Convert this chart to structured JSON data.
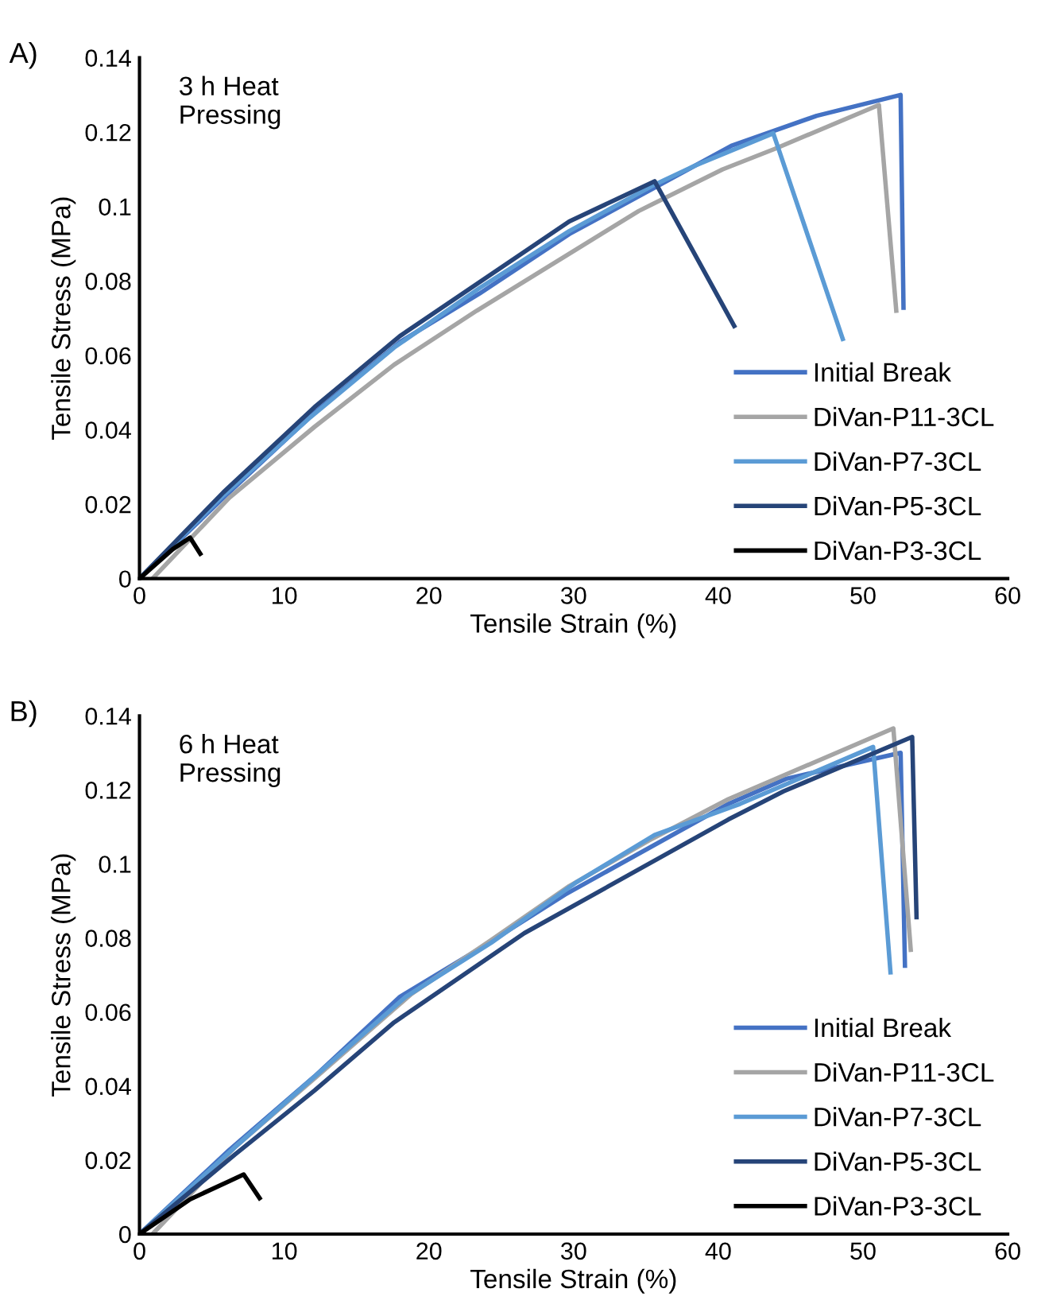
{
  "chart_data": [
    {
      "type": "line",
      "title": "A)",
      "xlabel": "Tensile Strain (%)",
      "ylabel": "Tensile Stress (MPa)",
      "annotations": [
        "3 h Heat\nPressing"
      ],
      "xlim": [
        0,
        60
      ],
      "xticks": [
        0,
        10,
        20,
        30,
        40,
        50,
        60
      ],
      "ylim": [
        0,
        0.14
      ],
      "yticks": [
        0,
        0.02,
        0.04,
        0.06,
        0.08,
        0.1,
        0.12,
        0.14
      ],
      "grid": false,
      "legend": "bottom right",
      "line_style": "solid",
      "marker": "none",
      "series": [
        {
          "name": "Initial Break",
          "color": "#4472c4",
          "x": [
            0,
            5.8,
            12.1,
            18.0,
            23.5,
            29.7,
            40.9,
            46.8,
            52.6,
            52.8
          ],
          "values": [
            0,
            0.0217,
            0.0446,
            0.0636,
            0.0766,
            0.0926,
            0.1163,
            0.1244,
            0.13,
            0.0728
          ]
        },
        {
          "name": "DiVan-P11-3CL",
          "color": "#a5a5a5",
          "x": [
            0.9,
            6.2,
            12.1,
            17.6,
            23.3,
            29.7,
            34.5,
            40.3,
            43.9,
            51.1,
            52.3
          ],
          "values": [
            0,
            0.0217,
            0.0408,
            0.0575,
            0.072,
            0.0873,
            0.0988,
            0.11,
            0.1155,
            0.1273,
            0.072
          ]
        },
        {
          "name": "DiVan-P7-3CL",
          "color": "#5b9bd5",
          "x": [
            0,
            5.8,
            11.7,
            17.6,
            23.5,
            29.7,
            35.6,
            38.4,
            43.8,
            48.6
          ],
          "values": [
            0,
            0.0224,
            0.043,
            0.0621,
            0.0781,
            0.0934,
            0.1059,
            0.111,
            0.1197,
            0.0644
          ]
        },
        {
          "name": "DiVan-P5-3CL",
          "color": "#264478",
          "x": [
            0,
            5.8,
            12.1,
            18.0,
            29.7,
            35.6,
            41.1
          ],
          "values": [
            0,
            0.0232,
            0.0461,
            0.0652,
            0.096,
            0.1068,
            0.0679
          ]
        },
        {
          "name": "DiVan-P3-3CL",
          "color": "#000000",
          "x": [
            0,
            2.3,
            3.5,
            4.2
          ],
          "values": [
            0,
            0.0079,
            0.011,
            0.0067
          ]
        }
      ]
    },
    {
      "type": "line",
      "title": "B)",
      "xlabel": "Tensile Strain (%)",
      "ylabel": "Tensile Stress (MPa)",
      "annotations": [
        "6 h Heat\nPressing"
      ],
      "xlim": [
        0,
        60
      ],
      "xticks": [
        0,
        10,
        20,
        30,
        40,
        50,
        60
      ],
      "ylim": [
        0,
        0.14
      ],
      "yticks": [
        0,
        0.02,
        0.04,
        0.06,
        0.08,
        0.1,
        0.12,
        0.14
      ],
      "grid": false,
      "legend": "bottom right",
      "line_style": "solid",
      "marker": "none",
      "series": [
        {
          "name": "Initial Break",
          "color": "#4472c4",
          "x": [
            0,
            6.2,
            12.1,
            18.0,
            23.5,
            29.4,
            40.7,
            44.7,
            52.6,
            52.9
          ],
          "values": [
            0,
            0.0227,
            0.0426,
            0.0641,
            0.0771,
            0.0917,
            0.1162,
            0.123,
            0.13,
            0.0725
          ]
        },
        {
          "name": "DiVan-P11-3CL",
          "color": "#a5a5a5",
          "x": [
            0.9,
            6.6,
            12.5,
            18.8,
            24.3,
            29.7,
            35.2,
            40.7,
            52.1,
            53.3
          ],
          "values": [
            0,
            0.0235,
            0.0434,
            0.0649,
            0.0794,
            0.094,
            0.1063,
            0.1175,
            0.1366,
            0.0768
          ]
        },
        {
          "name": "DiVan-P7-3CL",
          "color": "#5b9bd5",
          "x": [
            0,
            6.6,
            12.5,
            18.4,
            24.3,
            30.1,
            35.6,
            41.5,
            50.7,
            51.9
          ],
          "values": [
            0,
            0.0235,
            0.0439,
            0.0641,
            0.0787,
            0.0948,
            0.1078,
            0.1162,
            0.1316,
            0.0707
          ]
        },
        {
          "name": "DiVan-P5-3CL",
          "color": "#264478",
          "x": [
            0,
            6.6,
            12.1,
            17.6,
            26.6,
            40.7,
            44.5,
            53.4,
            53.7
          ],
          "values": [
            0,
            0.0215,
            0.0388,
            0.0572,
            0.0813,
            0.112,
            0.1196,
            0.1343,
            0.0856
          ]
        },
        {
          "name": "DiVan-P3-3CL",
          "color": "#000000",
          "x": [
            0,
            3.5,
            6.2,
            7.2,
            8.3
          ],
          "values": [
            0,
            0.0094,
            0.0143,
            0.0161,
            0.0097
          ]
        }
      ]
    }
  ]
}
